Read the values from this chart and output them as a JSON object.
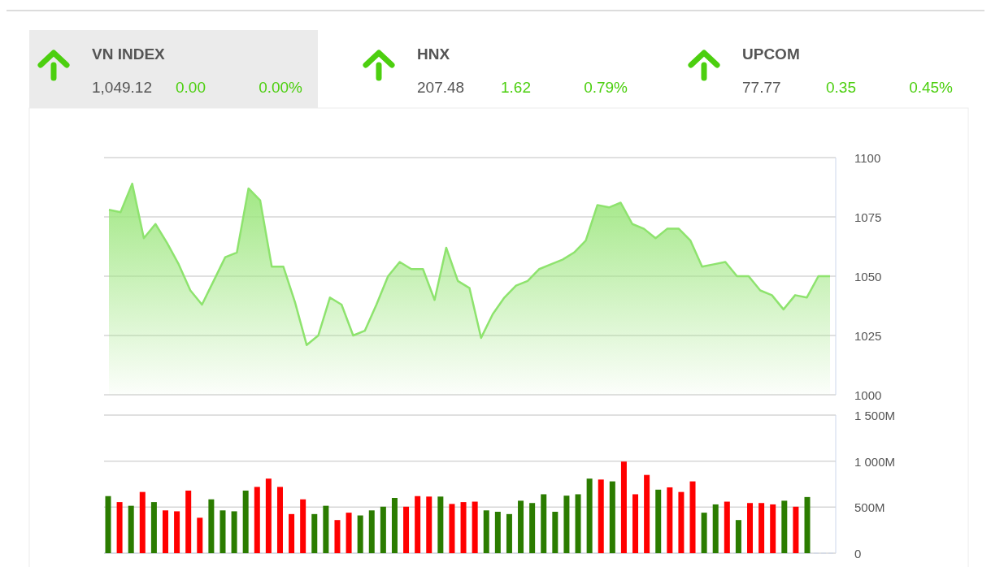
{
  "chart_data": [
    {
      "type": "other",
      "annotations": [
        "VN INDEX",
        "1,049.12",
        "0.00",
        "0.00%",
        "HNX",
        "207.48",
        "1.62",
        "0.79%",
        "UPCOM",
        "77.77",
        "0.35",
        "0.45%"
      ]
    },
    {
      "type": "area",
      "categories": [
        null,
        null,
        null,
        null,
        null,
        null,
        null,
        null,
        null,
        null,
        null,
        null,
        null,
        null,
        null,
        null,
        null,
        null,
        null,
        null,
        null,
        null,
        null,
        null,
        null,
        null,
        null,
        null,
        null,
        null,
        null,
        null,
        null,
        null,
        null,
        null,
        null,
        null,
        null,
        null,
        null,
        null,
        null,
        null,
        null,
        null,
        null,
        null,
        null,
        null,
        null,
        null,
        null,
        null,
        null,
        null,
        null,
        null,
        null,
        null,
        null,
        null,
        null
      ],
      "series": [
        {
          "color": "#8ee36e",
          "values": [
            1078,
            1077,
            1089,
            1066,
            1072,
            1064,
            1055,
            1044,
            1038,
            1048,
            1058,
            1060,
            1087,
            1082,
            1054,
            1054,
            1039,
            1021,
            1025,
            1041,
            1038,
            1025,
            1027,
            1038,
            1050,
            1056,
            1053,
            1053,
            1040,
            1062,
            1048,
            1045,
            1024,
            1034,
            1041,
            1046,
            1048,
            1053,
            1055,
            1057,
            1060,
            1065,
            1080,
            1079,
            1081,
            1072,
            1070,
            1066,
            1070,
            1070,
            1065,
            1054,
            1055,
            1056,
            1050,
            1050,
            1044,
            1042,
            1036,
            1042,
            1041,
            1050,
            1050
          ]
        }
      ],
      "ylim": [
        1000,
        1100
      ],
      "yticks": [
        1000,
        1025,
        1050,
        1075,
        1100
      ],
      "grid": "y"
    },
    {
      "type": "bar",
      "categories": [
        null,
        null,
        null,
        null,
        null,
        null,
        null,
        null,
        null,
        null,
        null,
        null,
        null,
        null,
        null,
        null,
        null,
        null,
        null,
        null,
        null,
        null,
        null,
        null,
        null,
        null,
        null,
        null,
        null,
        null,
        null,
        null,
        null,
        null,
        null,
        null,
        null,
        null,
        null,
        null,
        null,
        null,
        null,
        null,
        null,
        null,
        null,
        null,
        null,
        null,
        null,
        null,
        null,
        null,
        null,
        null,
        null,
        null,
        null,
        null,
        null,
        null
      ],
      "values": [
        620,
        555,
        515,
        665,
        555,
        465,
        455,
        680,
        385,
        585,
        465,
        455,
        680,
        720,
        810,
        720,
        425,
        585,
        425,
        515,
        360,
        440,
        410,
        465,
        505,
        600,
        505,
        620,
        615,
        615,
        535,
        555,
        560,
        465,
        450,
        425,
        570,
        545,
        640,
        450,
        625,
        640,
        810,
        800,
        780,
        995,
        640,
        850,
        690,
        715,
        665,
        780,
        440,
        530,
        560,
        360,
        545,
        545,
        530,
        570,
        505,
        610
      ],
      "colors": [
        "#2b7c00",
        "#ff0000",
        "#2b7c00",
        "#ff0000",
        "#2b7c00",
        "#ff0000",
        "#ff0000",
        "#ff0000",
        "#ff0000",
        "#2b7c00",
        "#2b7c00",
        "#2b7c00",
        "#2b7c00",
        "#ff0000",
        "#ff0000",
        "#ff0000",
        "#ff0000",
        "#ff0000",
        "#2b7c00",
        "#2b7c00",
        "#ff0000",
        "#ff0000",
        "#2b7c00",
        "#2b7c00",
        "#2b7c00",
        "#2b7c00",
        "#ff0000",
        "#ff0000",
        "#ff0000",
        "#2b7c00",
        "#ff0000",
        "#ff0000",
        "#ff0000",
        "#2b7c00",
        "#2b7c00",
        "#2b7c00",
        "#2b7c00",
        "#2b7c00",
        "#2b7c00",
        "#2b7c00",
        "#2b7c00",
        "#2b7c00",
        "#2b7c00",
        "#ff0000",
        "#2b7c00",
        "#ff0000",
        "#ff0000",
        "#ff0000",
        "#2b7c00",
        "#ff0000",
        "#ff0000",
        "#ff0000",
        "#2b7c00",
        "#2b7c00",
        "#ff0000",
        "#2b7c00",
        "#ff0000",
        "#ff0000",
        "#ff0000",
        "#2b7c00",
        "#ff0000",
        "#2b7c00"
      ],
      "ylim": [
        0,
        1500
      ],
      "yticks": [
        0,
        {
          "value": 500,
          "label": "500M"
        },
        {
          "value": 1000,
          "label": "1 000M"
        },
        {
          "value": 1500,
          "label": "1 500M"
        }
      ],
      "grid": "y"
    }
  ]
}
